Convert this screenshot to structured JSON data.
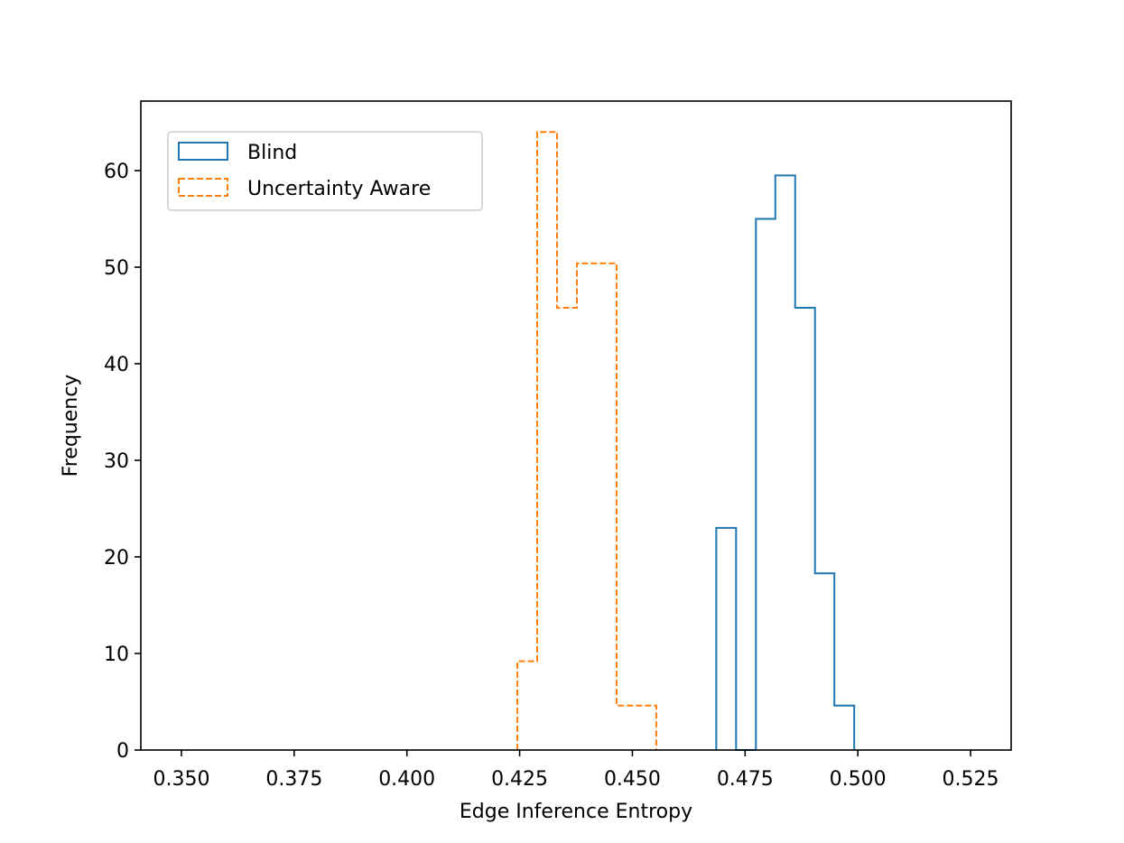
{
  "chart_data": {
    "type": "histogram",
    "title": "",
    "xlabel": "Edge Inference Entropy",
    "ylabel": "Frequency",
    "xlim": [
      0.341,
      0.534
    ],
    "ylim": [
      0,
      67.2
    ],
    "xticks": [
      0.35,
      0.375,
      0.4,
      0.425,
      0.45,
      0.475,
      0.5,
      0.525
    ],
    "xtick_labels": [
      "0.350",
      "0.375",
      "0.400",
      "0.425",
      "0.450",
      "0.475",
      "0.500",
      "0.525"
    ],
    "yticks": [
      0,
      10,
      20,
      30,
      40,
      50,
      60
    ],
    "ytick_labels": [
      "0",
      "10",
      "20",
      "30",
      "40",
      "50",
      "60"
    ],
    "grid": false,
    "legend_position": "top-left",
    "series": [
      {
        "name": "Blind",
        "style": "solid",
        "color": "#1f77b4",
        "bin_edges": [
          0.4686,
          0.473,
          0.4774,
          0.4817,
          0.4861,
          0.4905,
          0.4948,
          0.4992
        ],
        "counts": [
          23,
          0,
          55,
          59.5,
          45.8,
          18.3,
          4.6
        ]
      },
      {
        "name": "Uncertainty Aware",
        "style": "dashed",
        "color": "#ff7f0e",
        "bin_edges": [
          0.4245,
          0.4289,
          0.4333,
          0.4377,
          0.4421,
          0.4465,
          0.4509,
          0.4553
        ],
        "counts": [
          9.2,
          64,
          45.8,
          50.4,
          50.4,
          4.6,
          4.6
        ]
      }
    ]
  }
}
